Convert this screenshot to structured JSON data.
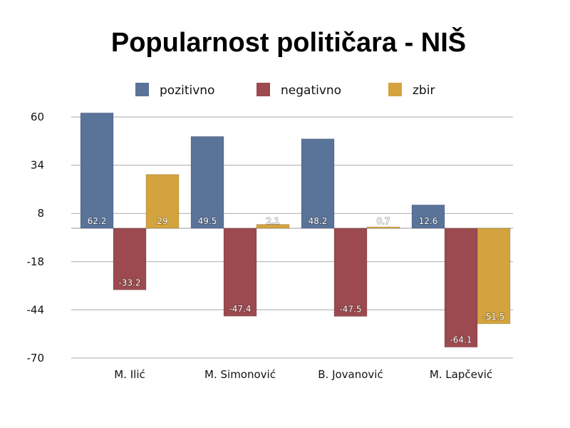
{
  "chart_data": {
    "type": "bar",
    "title": "Popularnost političara - NIŠ",
    "categories": [
      "M. Ilić",
      "M. Simonović",
      "B. Jovanović",
      "M. Lapčević"
    ],
    "series": [
      {
        "name": "pozitivno",
        "color": "#5a7399",
        "values": [
          62.2,
          49.5,
          48.2,
          12.6
        ]
      },
      {
        "name": "negativno",
        "color": "#9c4a4f",
        "values": [
          -33.2,
          -47.4,
          -47.5,
          -64.1
        ]
      },
      {
        "name": "zbir",
        "color": "#d4a33e",
        "values": [
          29,
          2.1,
          0.7,
          -51.5
        ]
      }
    ],
    "ylim": [
      -70,
      60
    ],
    "yticks": [
      60,
      34,
      8,
      -18,
      -44,
      -70
    ],
    "grid": true,
    "legend": "top",
    "xlabel": "",
    "ylabel": ""
  }
}
